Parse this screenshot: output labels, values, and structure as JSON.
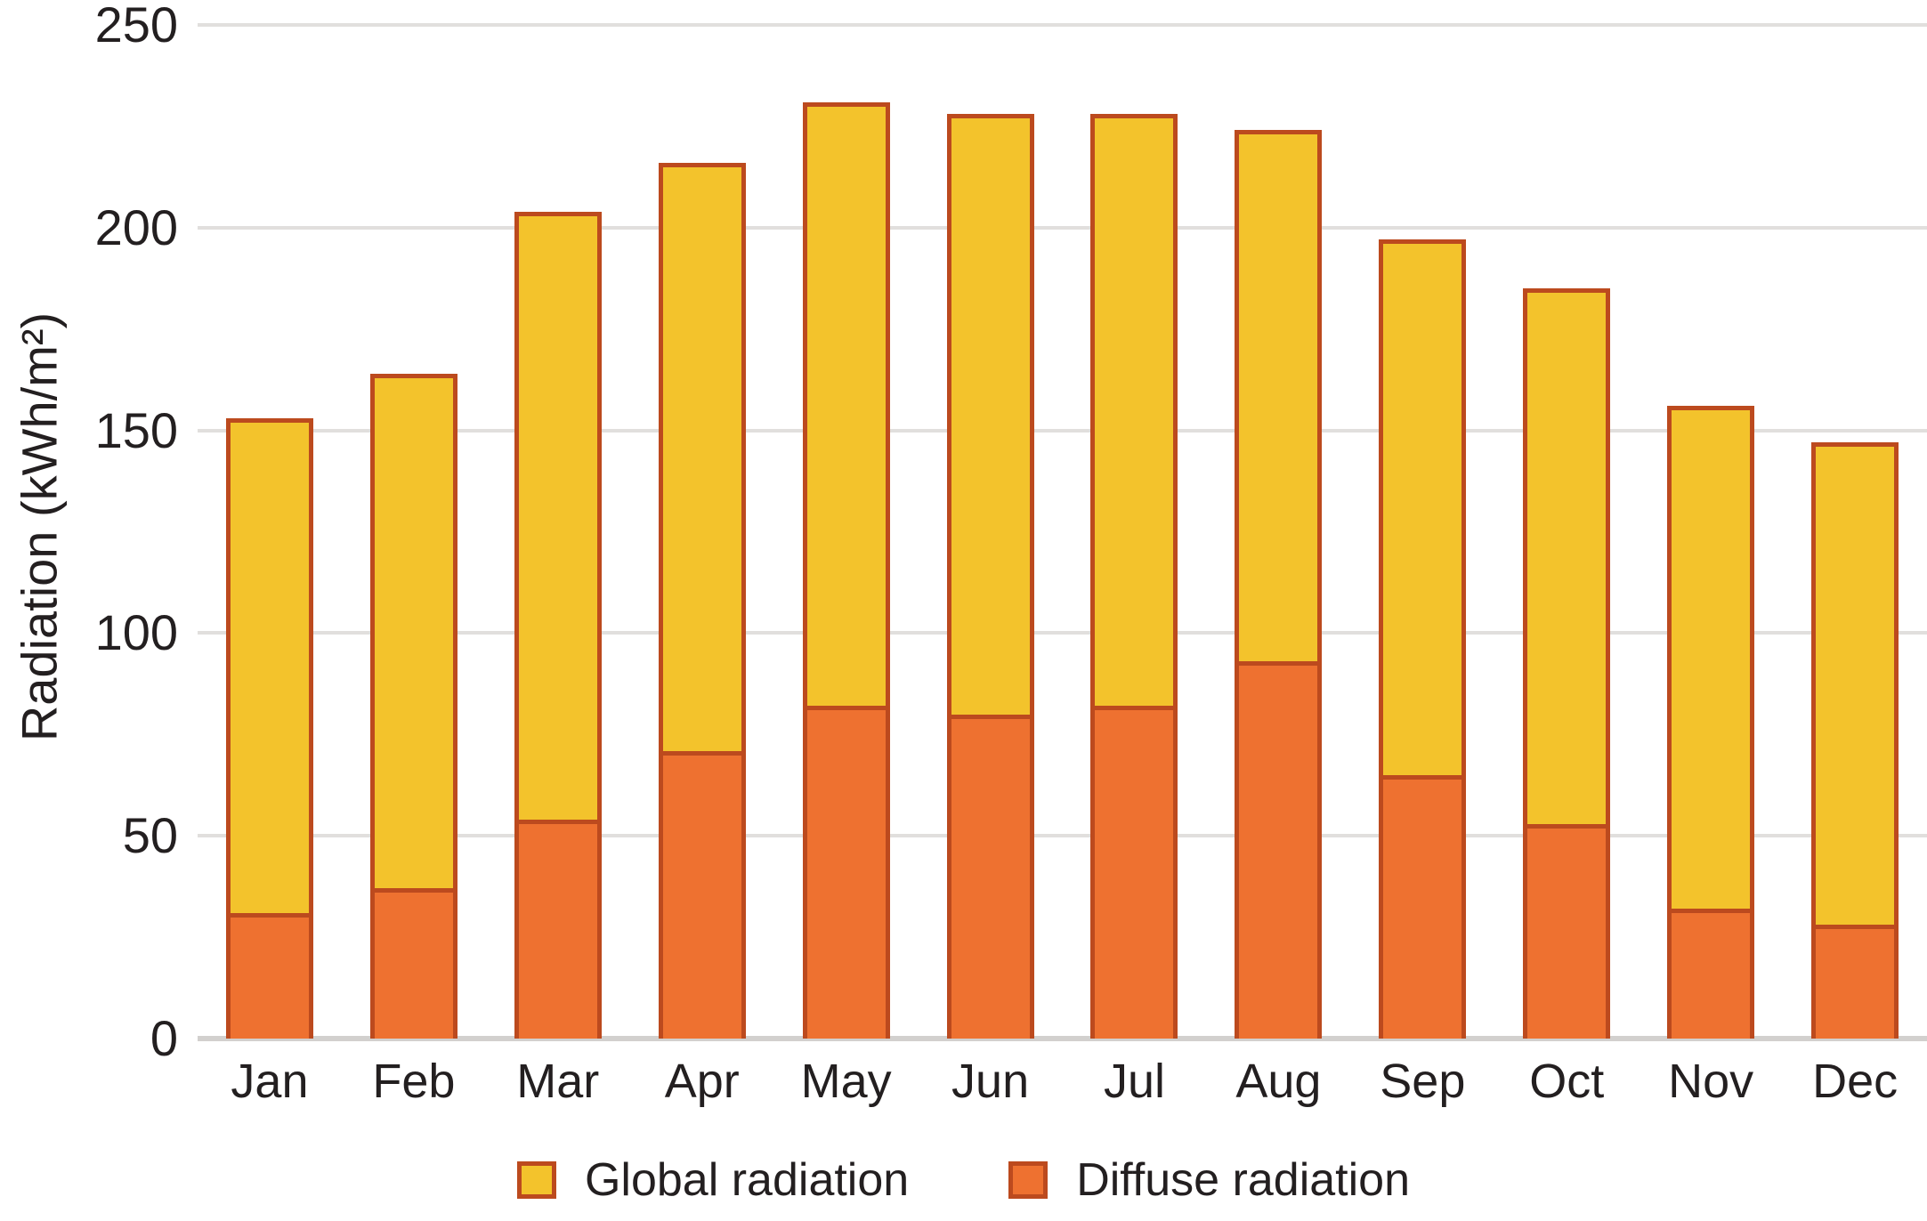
{
  "chart_data": {
    "type": "bar",
    "categories": [
      "Jan",
      "Feb",
      "Mar",
      "Apr",
      "May",
      "Jun",
      "Jul",
      "Aug",
      "Sep",
      "Oct",
      "Nov",
      "Dec"
    ],
    "series": [
      {
        "name": "Global radiation",
        "color": "#f3c32c",
        "values": [
          153,
          164,
          204,
          216,
          231,
          228,
          228,
          224,
          197,
          185,
          156,
          147
        ]
      },
      {
        "name": "Diffuse radiation",
        "color": "#ee7130",
        "values": [
          31,
          37,
          54,
          71,
          82,
          80,
          82,
          93,
          65,
          53,
          32,
          28
        ]
      }
    ],
    "title": "",
    "xlabel": "",
    "ylabel": "Radiation (kWh/m²)",
    "ylim": [
      0,
      250
    ],
    "yticks": [
      0,
      50,
      100,
      150,
      200,
      250
    ],
    "grid": "horizontal",
    "legend_position": "bottom",
    "bar_border_color": "#bc4a1e",
    "gridline_color": "#e1dfdd",
    "axis_line_color": "#d2d0ce",
    "text_color": "#231f20"
  }
}
